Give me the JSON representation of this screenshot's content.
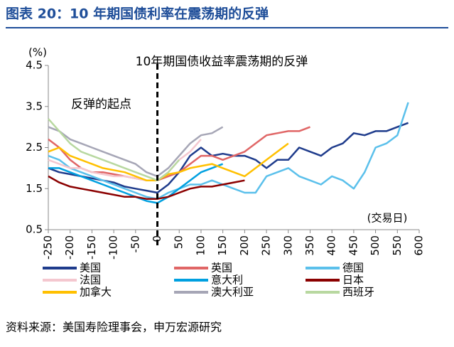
{
  "chart_data": {
    "type": "line",
    "title": "图表 20：10 年期国债利率在震荡期的反弹",
    "source": "资料来源：美国寿险理事会，申万宏源研究",
    "y_label": "(%)",
    "x_label": "(交易日)",
    "annotations": [
      "10年期国债收益率震荡期的反弹",
      "反弹的起点"
    ],
    "reference_x": 0,
    "x": [
      -250,
      -225,
      -200,
      -175,
      -150,
      -125,
      -100,
      -75,
      -50,
      -25,
      0,
      25,
      50,
      75,
      100,
      125,
      150,
      175,
      200,
      225,
      250,
      275,
      300,
      325,
      350,
      375,
      400,
      425,
      450,
      475,
      500,
      525,
      550,
      575,
      600
    ],
    "xlim": [
      -250,
      600
    ],
    "xticks": [
      -250,
      -200,
      -150,
      -100,
      -50,
      0,
      50,
      100,
      150,
      200,
      250,
      300,
      350,
      400,
      450,
      500,
      550,
      600
    ],
    "ylim": [
      0.5,
      4.5
    ],
    "yticks": [
      4.5,
      3.5,
      2.5,
      1.5,
      0.5
    ],
    "series": [
      {
        "name": "美国",
        "color": "#1f3c8c",
        "values": [
          2.0,
          1.9,
          1.85,
          1.8,
          1.75,
          1.7,
          1.65,
          1.55,
          1.5,
          1.45,
          1.4,
          1.6,
          1.9,
          2.3,
          2.5,
          2.3,
          2.35,
          2.3,
          2.3,
          2.2,
          2.0,
          2.2,
          2.2,
          2.5,
          2.4,
          2.3,
          2.5,
          2.6,
          2.85,
          2.8,
          2.9,
          2.9,
          3.0,
          3.1,
          null
        ]
      },
      {
        "name": "英国",
        "color": "#e06666",
        "values": [
          2.7,
          2.5,
          2.2,
          2.0,
          1.9,
          1.9,
          1.85,
          1.8,
          1.75,
          1.7,
          1.7,
          1.8,
          1.9,
          2.1,
          2.3,
          2.3,
          2.2,
          2.3,
          2.4,
          2.6,
          2.8,
          2.85,
          2.9,
          2.9,
          3.0,
          null,
          null,
          null,
          null,
          null,
          null,
          null,
          null,
          null,
          null
        ]
      },
      {
        "name": "德国",
        "color": "#5bc0eb",
        "values": [
          2.3,
          2.2,
          2.0,
          1.9,
          1.8,
          1.7,
          1.6,
          1.5,
          1.4,
          1.3,
          1.25,
          1.4,
          1.5,
          1.6,
          1.6,
          1.7,
          1.6,
          1.5,
          1.4,
          1.4,
          1.8,
          1.9,
          2.0,
          1.8,
          1.7,
          1.6,
          1.8,
          1.7,
          1.5,
          1.9,
          2.5,
          2.6,
          2.8,
          3.6,
          null
        ]
      },
      {
        "name": "法国",
        "color": "#f4c7cf",
        "values": [
          2.2,
          2.1,
          2.0,
          2.0,
          1.9,
          1.85,
          1.8,
          1.8,
          1.75,
          1.7,
          1.7,
          1.9,
          2.2,
          2.4,
          2.7,
          null,
          null,
          null,
          null,
          null,
          null,
          null,
          null,
          null,
          null,
          null,
          null,
          null,
          null,
          null,
          null,
          null,
          null,
          null,
          null
        ]
      },
      {
        "name": "意大利",
        "color": "#00a0e0",
        "values": [
          2.0,
          2.0,
          1.9,
          1.8,
          1.7,
          1.6,
          1.5,
          1.4,
          1.3,
          1.2,
          1.15,
          1.3,
          1.5,
          1.7,
          1.9,
          2.0,
          2.1,
          null,
          null,
          null,
          null,
          null,
          null,
          null,
          null,
          null,
          null,
          null,
          null,
          null,
          null,
          null,
          null,
          null,
          null
        ]
      },
      {
        "name": "日本",
        "color": "#8b0000",
        "values": [
          1.8,
          1.65,
          1.55,
          1.5,
          1.45,
          1.4,
          1.35,
          1.3,
          1.3,
          1.25,
          1.25,
          1.3,
          1.4,
          1.5,
          1.55,
          1.55,
          1.6,
          1.65,
          1.7,
          null,
          null,
          null,
          null,
          null,
          null,
          null,
          null,
          null,
          null,
          null,
          null,
          null,
          null,
          null,
          null
        ]
      },
      {
        "name": "加拿大",
        "color": "#ffc000",
        "values": [
          2.4,
          2.5,
          2.3,
          2.2,
          2.1,
          2.0,
          1.95,
          1.9,
          1.8,
          1.7,
          1.7,
          1.85,
          1.9,
          2.0,
          2.05,
          2.1,
          2.0,
          1.9,
          1.8,
          2.0,
          2.2,
          2.4,
          2.6,
          null,
          null,
          null,
          null,
          null,
          null,
          null,
          null,
          null,
          null,
          null,
          null
        ]
      },
      {
        "name": "澳大利亚",
        "color": "#a6a6b6",
        "values": [
          3.0,
          2.9,
          2.7,
          2.6,
          2.5,
          2.4,
          2.3,
          2.2,
          2.1,
          1.9,
          1.8,
          2.0,
          2.3,
          2.6,
          2.8,
          2.85,
          3.0,
          null,
          null,
          null,
          null,
          null,
          null,
          null,
          null,
          null,
          null,
          null,
          null,
          null,
          null,
          null,
          null,
          null,
          null
        ]
      },
      {
        "name": "西班牙",
        "color": "#b8d8a0",
        "values": [
          3.2,
          2.9,
          2.6,
          2.4,
          2.3,
          2.2,
          2.1,
          2.0,
          1.9,
          1.8,
          1.7,
          1.9,
          2.2,
          null,
          null,
          null,
          null,
          null,
          null,
          null,
          null,
          null,
          null,
          null,
          null,
          null,
          null,
          null,
          null,
          null,
          null,
          null,
          null,
          null,
          null
        ]
      }
    ]
  }
}
